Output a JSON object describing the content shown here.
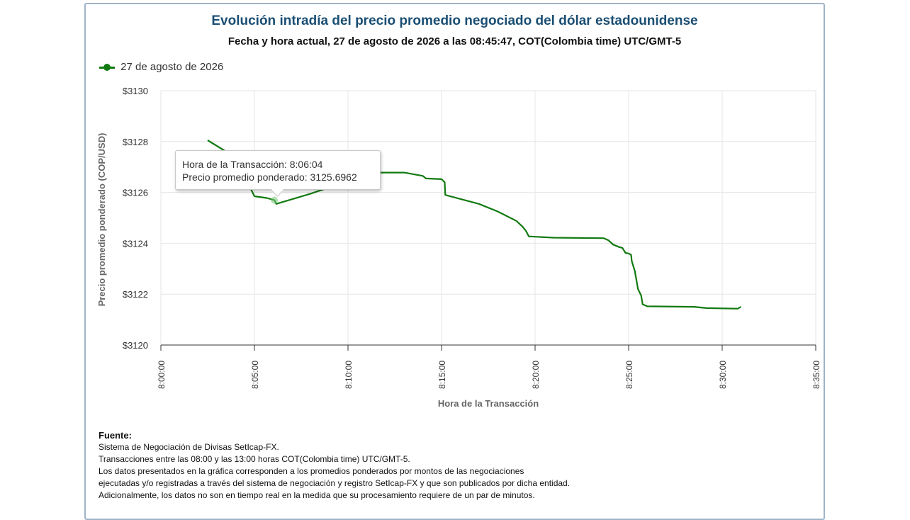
{
  "header": {
    "title": "Evolución intradía del precio promedio negociado del dólar estadounidense",
    "subtitle": "Fecha y hora actual, 27 de agosto de 2026 a las 08:45:47, COT(Colombia time) UTC/GMT-5"
  },
  "legend": {
    "label": "27 de agosto de 2026",
    "color": "#117a11"
  },
  "tooltip": {
    "line1": "Hora de la Transacción: 8:06:04",
    "line2": "Precio promedio ponderado: 3125.6962"
  },
  "source": {
    "heading": "Fuente:",
    "lines": [
      "Sistema de Negociación de Divisas SetIcap-FX.",
      "Transacciones entre las 08:00 y las 13:00 horas COT(Colombia time) UTC/GMT-5.",
      "Los datos presentados en la gráfica corresponden a los promedios ponderados por montos de las negociaciones",
      "ejecutadas y/o registradas a través del sistema de negociación y registro SetIcap-FX y que son publicados por dicha entidad.",
      "Adicionalmente, los datos no son en tiempo real en la medida que su procesamiento requiere de un par de minutos."
    ]
  },
  "chart_data": {
    "type": "line",
    "xlabel": "Hora de la Transacción",
    "ylabel": "Precio promedio ponderado (COP/USD)",
    "xlim": [
      "8:00:00",
      "8:35:00"
    ],
    "ylim": [
      3120,
      3130
    ],
    "xticks": [
      "8:00:00",
      "8:05:00",
      "8:10:00",
      "8:15:00",
      "8:20:00",
      "8:25:00",
      "8:30:00",
      "8:35:00"
    ],
    "yticks": [
      "$3120",
      "$3122",
      "$3124",
      "$3126",
      "$3128",
      "$3130"
    ],
    "grid": true,
    "legend_position": "top-left",
    "series": [
      {
        "name": "27 de agosto de 2026",
        "color": "#117a11",
        "points": [
          [
            "8:02:30",
            3128.05
          ],
          [
            "8:03:30",
            3127.6
          ],
          [
            "8:04:30",
            3126.6
          ],
          [
            "8:05:00",
            3125.85
          ],
          [
            "8:05:40",
            3125.78
          ],
          [
            "8:06:04",
            3125.6962
          ],
          [
            "8:06:10",
            3125.55
          ],
          [
            "8:08:00",
            3125.95
          ],
          [
            "8:09:00",
            3126.2
          ],
          [
            "8:10:00",
            3126.6
          ],
          [
            "8:11:30",
            3126.78
          ],
          [
            "8:13:00",
            3126.78
          ],
          [
            "8:14:00",
            3126.65
          ],
          [
            "8:14:10",
            3126.55
          ],
          [
            "8:15:00",
            3126.52
          ],
          [
            "8:15:10",
            3126.4
          ],
          [
            "8:15:12",
            3125.9
          ],
          [
            "8:17:00",
            3125.55
          ],
          [
            "8:18:00",
            3125.25
          ],
          [
            "8:19:00",
            3124.88
          ],
          [
            "8:19:20",
            3124.65
          ],
          [
            "8:19:30",
            3124.5
          ],
          [
            "8:19:40",
            3124.27
          ],
          [
            "8:21:00",
            3124.22
          ],
          [
            "8:23:40",
            3124.2
          ],
          [
            "8:23:55",
            3124.12
          ],
          [
            "8:24:10",
            3123.95
          ],
          [
            "8:24:30",
            3123.85
          ],
          [
            "8:24:40",
            3123.82
          ],
          [
            "8:24:50",
            3123.62
          ],
          [
            "8:25:00",
            3123.6
          ],
          [
            "8:25:08",
            3123.55
          ],
          [
            "8:25:10",
            3123.3
          ],
          [
            "8:25:20",
            3122.9
          ],
          [
            "8:25:30",
            3122.2
          ],
          [
            "8:25:40",
            3121.95
          ],
          [
            "8:25:45",
            3121.6
          ],
          [
            "8:26:00",
            3121.52
          ],
          [
            "8:28:30",
            3121.5
          ],
          [
            "8:29:10",
            3121.45
          ],
          [
            "8:30:50",
            3121.43
          ],
          [
            "8:31:00",
            3121.5
          ]
        ]
      }
    ],
    "highlighted_point": [
      "8:06:04",
      3125.6962
    ]
  }
}
